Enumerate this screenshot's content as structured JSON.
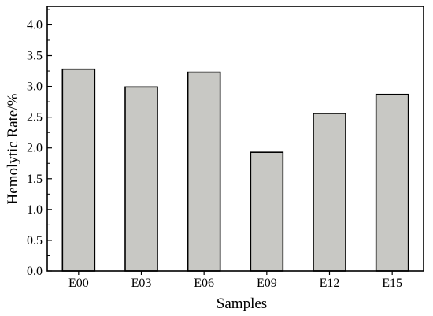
{
  "chart_data": {
    "type": "bar",
    "xlabel": "Samples",
    "ylabel": "Hemolytic Rate/%",
    "categories": [
      "E00",
      "E03",
      "E06",
      "E09",
      "E12",
      "E15"
    ],
    "values": [
      3.28,
      2.99,
      3.23,
      1.93,
      2.56,
      2.87
    ],
    "ylim": [
      0,
      4.3
    ],
    "yticks": [
      0.0,
      0.5,
      1.0,
      1.5,
      2.0,
      2.5,
      3.0,
      3.5,
      4.0
    ],
    "ytick_labels": [
      "0.0",
      "0.5",
      "1.0",
      "1.5",
      "2.0",
      "2.5",
      "3.0",
      "3.5",
      "4.0"
    ],
    "grid": false,
    "legend": "none",
    "bar_color": "#c8c8c4",
    "edge_color": "#000000"
  }
}
